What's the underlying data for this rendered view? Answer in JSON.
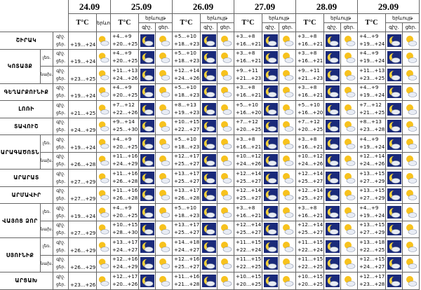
{
  "header": {
    "days": [
      "24.09",
      "25.09",
      "26.09",
      "27.09",
      "28.09",
      "29.09"
    ],
    "temp_label": "T°C",
    "phenomenon": "երևույթ",
    "night": "գիշ.",
    "day": "ցեր."
  },
  "regions": [
    {
      "name": "ՇԻՐԱԿ",
      "parts": [
        {
          "d24": "+19...+24",
          "days": [
            [
              "+4...+9",
              "+20...+25"
            ],
            [
              "+5...+10",
              "+18...+23"
            ],
            [
              "+3...+8",
              "+16...+21"
            ],
            [
              "+3...+8",
              "+16...+21"
            ],
            [
              "+4...+9",
              "+19...+24"
            ]
          ]
        }
      ]
    },
    {
      "name": "ԿՈՏԱՅՔ",
      "parts": [
        {
          "sub": "լեռ.",
          "d24": "+19...+24",
          "days": [
            [
              "+4...+9",
              "+20...+25"
            ],
            [
              "+5...+10",
              "+18...+23"
            ],
            [
              "+3...+8",
              "+16...+21"
            ],
            [
              "+3...+8",
              "+16...+21"
            ],
            [
              "+4...+9",
              "+19...+24"
            ]
          ]
        },
        {
          "sub": "նախ.",
          "d24": "+23...+25",
          "days": [
            [
              "+11...+13",
              "+24...+26"
            ],
            [
              "+12...+14",
              "+24...+26"
            ],
            [
              "+9...+11",
              "+21...+23"
            ],
            [
              "+9...+11",
              "+21...+23"
            ],
            [
              "+11...+13",
              "+23...+25"
            ]
          ]
        }
      ]
    },
    {
      "name": "ԳԵՂԱՐՔՈՒՆԻՔ",
      "parts": [
        {
          "d24": "+19...+24",
          "days": [
            [
              "+4...+9",
              "+20...+25"
            ],
            [
              "+5...+10",
              "+18...+23"
            ],
            [
              "+3...+8",
              "+16...+21"
            ],
            [
              "+3...+8",
              "+16...+21"
            ],
            [
              "+4...+9",
              "+19...+24"
            ]
          ]
        }
      ]
    },
    {
      "name": "ԼՈՌԻ",
      "parts": [
        {
          "d24": "+21...+25",
          "days": [
            [
              "+7...+12",
              "+22...+26"
            ],
            [
              "+8...+13",
              "+19...+23"
            ],
            [
              "+5...+10",
              "+16...+20"
            ],
            [
              "+5...+10",
              "+16...+20"
            ],
            [
              "+7...+12",
              "+21...+25"
            ]
          ]
        }
      ]
    },
    {
      "name": "ՏԱՎՈՒՇ",
      "parts": [
        {
          "d24": "+24...+29",
          "days": [
            [
              "+9...+14",
              "+25...+30"
            ],
            [
              "+10...+15",
              "+22...+27"
            ],
            [
              "+7...+12",
              "+20...+25"
            ],
            [
              "+7...+12",
              "+20...+25"
            ],
            [
              "+8...+13",
              "+23...+28"
            ]
          ]
        }
      ]
    },
    {
      "name": "ԱՐԱԳԱԾՈՏՆ",
      "parts": [
        {
          "sub": "լեռ.",
          "d24": "+19...+24",
          "days": [
            [
              "+4...+9",
              "+20...+25"
            ],
            [
              "+5...+10",
              "+18...+23"
            ],
            [
              "+3...+8",
              "+16...+21"
            ],
            [
              "+3...+8",
              "+16...+21"
            ],
            [
              "+4...+9",
              "+19...+24"
            ]
          ]
        },
        {
          "sub": "նախ.",
          "d24": "+26...+28",
          "days": [
            [
              "+11...+16",
              "+24...+29"
            ],
            [
              "+12...+17",
              "+25...+27"
            ],
            [
              "+10...+12",
              "+24...+26"
            ],
            [
              "+10...+12",
              "+24...+26"
            ],
            [
              "+12...+14",
              "+24...+26"
            ]
          ]
        }
      ]
    },
    {
      "name": "ԱՐԱՐԱՏ",
      "parts": [
        {
          "d24": "+27...+29",
          "days": [
            [
              "+11...+16",
              "+26...+28"
            ],
            [
              "+13...+17",
              "+25...+27"
            ],
            [
              "+12...+14",
              "+25...+27"
            ],
            [
              "+12...+14",
              "+25...+27"
            ],
            [
              "+13...+15",
              "+27...+29"
            ]
          ]
        }
      ]
    },
    {
      "name": "ԱՐՄԱՎԻՐ",
      "parts": [
        {
          "d24": "+27...+29",
          "days": [
            [
              "+11...+16",
              "+26...+28"
            ],
            [
              "+13...+17",
              "+26...+28"
            ],
            [
              "+12...+14",
              "+25...+27"
            ],
            [
              "+12...+14",
              "+25...+27"
            ],
            [
              "+13...+15",
              "+27...+29"
            ]
          ]
        }
      ]
    },
    {
      "name": "ՎԱՅՈՑ ՁՈՐ",
      "parts": [
        {
          "sub": "լեռ.",
          "d24": "+19...+24",
          "days": [
            [
              "+4...+9",
              "+20...+25"
            ],
            [
              "+5...+10",
              "+18...+23"
            ],
            [
              "+3...+8",
              "+16...+21"
            ],
            [
              "+3...+8",
              "+16...+21"
            ],
            [
              "+4...+9",
              "+19...+24"
            ]
          ]
        },
        {
          "sub": "նախ.",
          "d24": "+27...+29",
          "days": [
            [
              "+10...+15",
              "+28...+30"
            ],
            [
              "+13...+17",
              "+25...+27"
            ],
            [
              "+12...+14",
              "+25...+27"
            ],
            [
              "+12...+14",
              "+25...+27"
            ],
            [
              "+13...+15",
              "+27...+29"
            ]
          ]
        }
      ]
    },
    {
      "name": "ՍՅՈՒՆԻՔ",
      "parts": [
        {
          "sub": "լեռ.",
          "d24": "+26...+29",
          "days": [
            [
              "+13...+17",
              "+24...+27"
            ],
            [
              "+14...+18",
              "+24...+27"
            ],
            [
              "+11...+15",
              "+22...+24"
            ],
            [
              "+11...+15",
              "+22...+24"
            ],
            [
              "+13...+18",
              "+22...+25"
            ]
          ]
        },
        {
          "sub": "նախ.",
          "d24": "+26...+29",
          "days": [
            [
              "+12...+16",
              "+24...+29"
            ],
            [
              "+12...+16",
              "+25...+27"
            ],
            [
              "+11...+15",
              "+22...+25"
            ],
            [
              "+11...+15",
              "+22...+25"
            ],
            [
              "+12...+15",
              "+24...+27"
            ]
          ]
        }
      ]
    },
    {
      "name": "ԱՐՑԱԽ",
      "parts": [
        {
          "d24": "+23...+26",
          "days": [
            [
              "+12...+17",
              "+20...+26"
            ],
            [
              "+11...+16",
              "+21...+28"
            ],
            [
              "+10...+15",
              "+20...+25"
            ],
            [
              "+10...+15",
              "+20...+25"
            ],
            [
              "+12...+17",
              "+23...+28"
            ]
          ]
        }
      ]
    }
  ]
}
